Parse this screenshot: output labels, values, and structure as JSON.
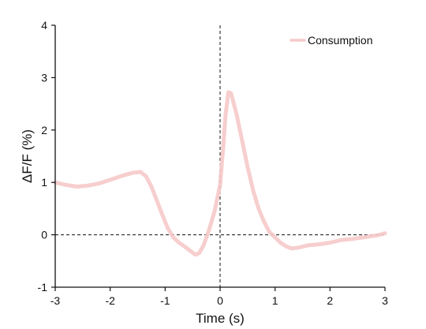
{
  "chart_data": {
    "type": "line",
    "title": "",
    "xlabel": "Time (s)",
    "ylabel": "ΔF/F (%)",
    "xlim": [
      -3,
      3
    ],
    "ylim": [
      -1,
      4
    ],
    "xticks": [
      -3,
      -2,
      -1,
      0,
      1,
      2,
      3
    ],
    "yticks": [
      -1,
      0,
      1,
      2,
      3,
      4
    ],
    "xtick_labels": [
      "-3",
      "-2",
      "-1",
      "0",
      "1",
      "2",
      "3"
    ],
    "ytick_labels": [
      "-1",
      "0",
      "1",
      "2",
      "3",
      "4"
    ],
    "reference_lines": [
      {
        "orientation": "vertical",
        "value": 0,
        "style": "dashed"
      },
      {
        "orientation": "horizontal",
        "value": 0,
        "style": "dashed"
      }
    ],
    "legend": {
      "placement": "top-right",
      "entries": [
        "Consumption"
      ]
    },
    "grid": false,
    "series": [
      {
        "name": "Consumption",
        "color": "#f6c9c9",
        "x": [
          -3.0,
          -2.8,
          -2.6,
          -2.4,
          -2.2,
          -2.0,
          -1.8,
          -1.6,
          -1.45,
          -1.35,
          -1.25,
          -1.15,
          -1.05,
          -0.95,
          -0.85,
          -0.75,
          -0.65,
          -0.55,
          -0.45,
          -0.38,
          -0.3,
          -0.2,
          -0.1,
          0.0,
          0.05,
          0.1,
          0.15,
          0.2,
          0.3,
          0.4,
          0.5,
          0.6,
          0.7,
          0.8,
          0.9,
          1.0,
          1.1,
          1.2,
          1.3,
          1.4,
          1.6,
          1.8,
          2.0,
          2.2,
          2.4,
          2.6,
          2.8,
          2.9,
          3.0
        ],
        "values": [
          1.0,
          0.95,
          0.92,
          0.94,
          0.98,
          1.05,
          1.12,
          1.18,
          1.2,
          1.12,
          0.92,
          0.65,
          0.38,
          0.12,
          -0.05,
          -0.15,
          -0.22,
          -0.3,
          -0.38,
          -0.35,
          -0.2,
          0.1,
          0.45,
          0.95,
          1.6,
          2.3,
          2.72,
          2.7,
          2.3,
          1.8,
          1.3,
          0.85,
          0.5,
          0.25,
          0.05,
          -0.05,
          -0.15,
          -0.22,
          -0.26,
          -0.25,
          -0.2,
          -0.18,
          -0.15,
          -0.1,
          -0.08,
          -0.05,
          -0.02,
          0.0,
          0.03
        ]
      }
    ]
  }
}
